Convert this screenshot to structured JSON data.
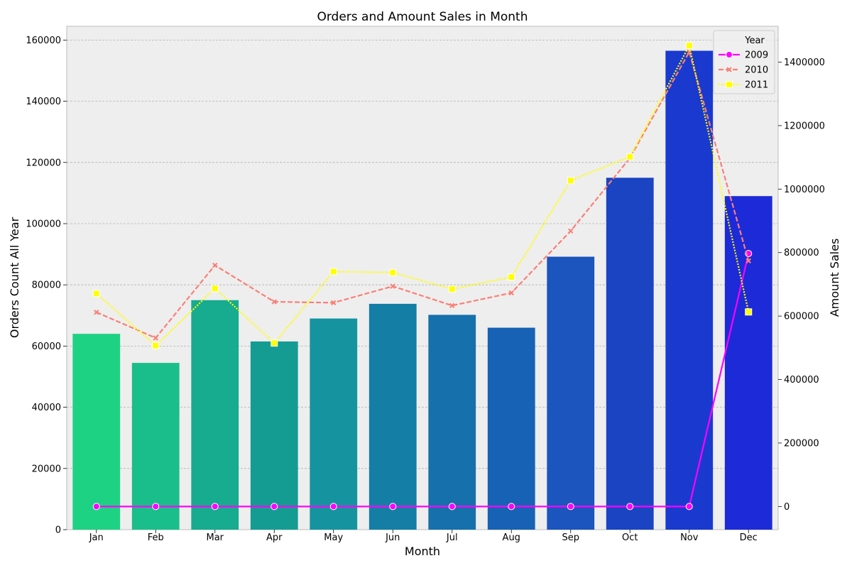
{
  "chart_data": {
    "type": "bar",
    "title": "Orders and Amount Sales in Month",
    "xlabel": "Month",
    "ylabel": "Orders Count All Year",
    "y2label": "Amount Sales",
    "categories": [
      "Jan",
      "Feb",
      "Mar",
      "Apr",
      "May",
      "Jun",
      "Jul",
      "Aug",
      "Sep",
      "Oct",
      "Nov",
      "Dec"
    ],
    "ylim": [
      0,
      164500
    ],
    "yticks": [
      0,
      20000,
      40000,
      60000,
      80000,
      100000,
      120000,
      140000,
      160000
    ],
    "y2lim": [
      -73000,
      1513000
    ],
    "y2ticks": [
      0,
      200000,
      400000,
      600000,
      800000,
      1000000,
      1200000,
      1400000
    ],
    "grid": true,
    "bars": {
      "name": "Orders Count All Year",
      "values": [
        64000,
        54500,
        75000,
        61500,
        69000,
        73800,
        70200,
        66000,
        89200,
        115000,
        156500,
        109000
      ],
      "colors": [
        "#1ed283",
        "#1abe8a",
        "#17ab8f",
        "#149c93",
        "#1594a0",
        "#157ea5",
        "#1670ab",
        "#1762b4",
        "#1b55bd",
        "#1a44c2",
        "#1a39cf",
        "#1d2ad8"
      ]
    },
    "lines": {
      "axis": "y2",
      "legend_title": "Year",
      "legend_position": "top-right",
      "series": [
        {
          "name": "2009",
          "color": "#ff00ff",
          "style": "solid",
          "marker": "circle",
          "values": [
            0,
            0,
            0,
            0,
            0,
            0,
            0,
            0,
            0,
            0,
            0,
            797000
          ]
        },
        {
          "name": "2010",
          "color": "#f98077",
          "style": "dashed",
          "marker": "x",
          "values": [
            612000,
            531000,
            760000,
            645000,
            642000,
            694000,
            633000,
            673000,
            868000,
            1098000,
            1432000,
            774000
          ]
        },
        {
          "name": "2011",
          "color": "#ffff00",
          "style": "dotted",
          "marker": "square",
          "values": [
            671000,
            507000,
            687000,
            515000,
            740000,
            737000,
            685000,
            723000,
            1027000,
            1102000,
            1452000,
            613000
          ]
        }
      ]
    }
  }
}
